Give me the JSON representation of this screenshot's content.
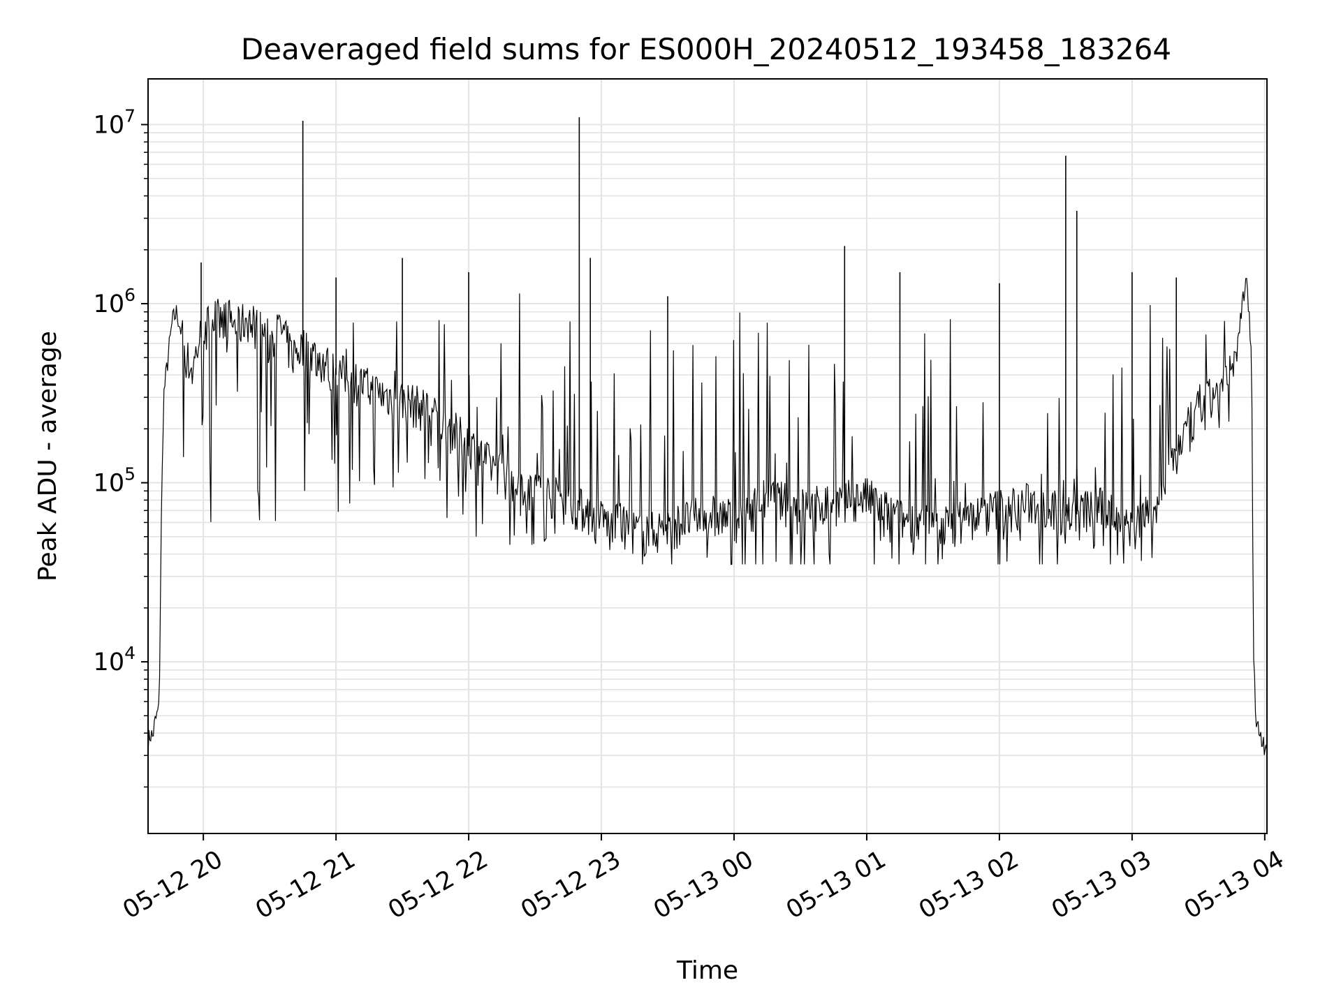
{
  "chart_data": {
    "type": "line",
    "title": "Deaveraged field sums for ES000H_20240512_193458_183264",
    "xlabel": "Time",
    "ylabel": "Peak ADU - average",
    "y_scale": "log",
    "ylim": [
      1100,
      18000000
    ],
    "xlim": [
      "2024-05-12 19:35",
      "2024-05-13 04:01"
    ],
    "grid": "major and minor",
    "line_color": "#000000",
    "grid_color": "#e3e3e3",
    "x_ticks": [
      {
        "value": "2024-05-12 20:00",
        "label": "05-12 20"
      },
      {
        "value": "2024-05-12 21:00",
        "label": "05-12 21"
      },
      {
        "value": "2024-05-12 22:00",
        "label": "05-12 22"
      },
      {
        "value": "2024-05-12 23:00",
        "label": "05-12 23"
      },
      {
        "value": "2024-05-13 00:00",
        "label": "05-13 00"
      },
      {
        "value": "2024-05-13 01:00",
        "label": "05-13 01"
      },
      {
        "value": "2024-05-13 02:00",
        "label": "05-13 02"
      },
      {
        "value": "2024-05-13 03:00",
        "label": "05-13 03"
      },
      {
        "value": "2024-05-13 04:00",
        "label": "05-13 04"
      }
    ],
    "y_ticks": [
      {
        "value": 10000,
        "base": "10",
        "exp": "4"
      },
      {
        "value": 100000,
        "base": "10",
        "exp": "5"
      },
      {
        "value": 1000000,
        "base": "10",
        "exp": "6"
      },
      {
        "value": 10000000,
        "base": "10",
        "exp": "7"
      }
    ],
    "series": [
      {
        "x": [
          "2024-05-12 19:35",
          "2024-05-12 19:36",
          "2024-05-12 19:37",
          "2024-05-12 19:38",
          "2024-05-12 19:39",
          "2024-05-12 19:40",
          "2024-05-12 19:41",
          "2024-05-12 19:42",
          "2024-05-12 19:44",
          "2024-05-12 19:46",
          "2024-05-12 19:48",
          "2024-05-12 19:50",
          "2024-05-12 19:52",
          "2024-05-12 19:55",
          "2024-05-12 19:58",
          "2024-05-12 20:00",
          "2024-05-12 20:05",
          "2024-05-12 20:10",
          "2024-05-12 20:15",
          "2024-05-12 20:20",
          "2024-05-12 20:25",
          "2024-05-12 20:30",
          "2024-05-12 20:35",
          "2024-05-12 20:40",
          "2024-05-12 20:45",
          "2024-05-12 20:50",
          "2024-05-12 20:55",
          "2024-05-12 21:00",
          "2024-05-12 21:10",
          "2024-05-12 21:20",
          "2024-05-12 21:30",
          "2024-05-12 21:40",
          "2024-05-12 21:50",
          "2024-05-12 22:00",
          "2024-05-12 22:10",
          "2024-05-12 22:20",
          "2024-05-12 22:30",
          "2024-05-12 22:40",
          "2024-05-12 22:50",
          "2024-05-12 23:00",
          "2024-05-12 23:10",
          "2024-05-12 23:20",
          "2024-05-12 23:30",
          "2024-05-12 23:40",
          "2024-05-12 23:50",
          "2024-05-13 00:00",
          "2024-05-13 00:15",
          "2024-05-13 00:30",
          "2024-05-13 00:45",
          "2024-05-13 01:00",
          "2024-05-13 01:15",
          "2024-05-13 01:30",
          "2024-05-13 01:45",
          "2024-05-13 02:00",
          "2024-05-13 02:15",
          "2024-05-13 02:30",
          "2024-05-13 02:45",
          "2024-05-13 03:00",
          "2024-05-13 03:10",
          "2024-05-13 03:20",
          "2024-05-13 03:30",
          "2024-05-13 03:40",
          "2024-05-13 03:45",
          "2024-05-13 03:48",
          "2024-05-13 03:50",
          "2024-05-13 03:52",
          "2024-05-13 03:54",
          "2024-05-13 03:55",
          "2024-05-13 03:56",
          "2024-05-13 03:58",
          "2024-05-13 04:00"
        ],
        "values": [
          3500,
          4000,
          3800,
          4500,
          5000,
          5500,
          60000,
          300000,
          500000,
          800000,
          900000,
          700000,
          500000,
          400000,
          600000,
          700000,
          800000,
          850000,
          700000,
          800000,
          700000,
          600000,
          700000,
          500000,
          550000,
          500000,
          450000,
          400000,
          350000,
          300000,
          280000,
          250000,
          200000,
          160000,
          120000,
          100000,
          90000,
          80000,
          70000,
          60000,
          55000,
          50000,
          55000,
          60000,
          65000,
          60000,
          80000,
          70000,
          75000,
          80000,
          60000,
          55000,
          60000,
          70000,
          75000,
          65000,
          70000,
          60000,
          65000,
          150000,
          250000,
          320000,
          400000,
          600000,
          1100000,
          1300000,
          500000,
          12000,
          4500,
          4000,
          3500
        ],
        "spikes": [
          {
            "x": "2024-05-12 19:59",
            "value": 1700000
          },
          {
            "x": "2024-05-12 20:45",
            "value": 10500000
          },
          {
            "x": "2024-05-12 21:00",
            "value": 1400000
          },
          {
            "x": "2024-05-12 21:30",
            "value": 1800000
          },
          {
            "x": "2024-05-12 22:00",
            "value": 1500000
          },
          {
            "x": "2024-05-12 22:50",
            "value": 11000000
          },
          {
            "x": "2024-05-12 22:55",
            "value": 1800000
          },
          {
            "x": "2024-05-12 23:30",
            "value": 1100000
          },
          {
            "x": "2024-05-13 00:50",
            "value": 2100000
          },
          {
            "x": "2024-05-13 01:15",
            "value": 1500000
          },
          {
            "x": "2024-05-13 02:00",
            "value": 1300000
          },
          {
            "x": "2024-05-13 02:30",
            "value": 6700000
          },
          {
            "x": "2024-05-13 02:35",
            "value": 3300000
          },
          {
            "x": "2024-05-13 03:00",
            "value": 1500000
          },
          {
            "x": "2024-05-13 03:20",
            "value": 1400000
          }
        ],
        "noise_band": [
          {
            "from": "2024-05-12 19:50",
            "to": "2024-05-12 21:30",
            "low": 60000,
            "high": 1300000
          },
          {
            "from": "2024-05-12 21:30",
            "to": "2024-05-12 23:00",
            "low": 45000,
            "high": 1400000
          },
          {
            "from": "2024-05-12 23:00",
            "to": "2024-05-13 03:15",
            "low": 35000,
            "high": 1000000
          },
          {
            "from": "2024-05-13 03:15",
            "to": "2024-05-13 03:45",
            "low": 80000,
            "high": 1000000
          }
        ]
      }
    ]
  }
}
